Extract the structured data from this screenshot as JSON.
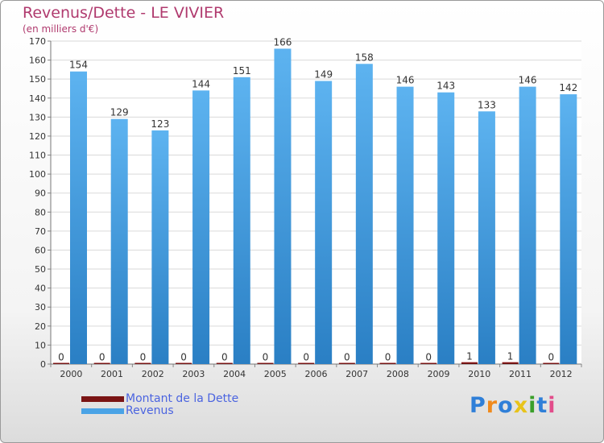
{
  "header": {
    "title": "Revenus/Dette - LE VIVIER",
    "subtitle": "(en milliers d'€)"
  },
  "chart_data": {
    "type": "bar",
    "categories": [
      "2000",
      "2001",
      "2002",
      "2003",
      "2004",
      "2005",
      "2006",
      "2007",
      "2008",
      "2009",
      "2010",
      "2011",
      "2012"
    ],
    "series": [
      {
        "name": "Montant de la Dette",
        "color": "#7a1414",
        "values": [
          0,
          0,
          0,
          0,
          0,
          0,
          0,
          0,
          0,
          0,
          1,
          1,
          0
        ]
      },
      {
        "name": "Revenus",
        "color": "#4aa3e6",
        "values": [
          154,
          129,
          123,
          144,
          151,
          166,
          149,
          158,
          146,
          143,
          133,
          146,
          142
        ]
      }
    ],
    "ylim": [
      0,
      170
    ],
    "yticks": [
      0,
      10,
      20,
      30,
      40,
      50,
      60,
      70,
      80,
      90,
      100,
      110,
      120,
      130,
      140,
      150,
      160,
      170
    ],
    "grid": true,
    "legend_position": "bottom-left"
  },
  "logo": {
    "text": "Proxiti",
    "colors": [
      "#2f7fd8",
      "#f08a1c",
      "#2f7fd8",
      "#e8c31a",
      "#3a9f2a",
      "#2f7fd8",
      "#e24c8a"
    ]
  }
}
